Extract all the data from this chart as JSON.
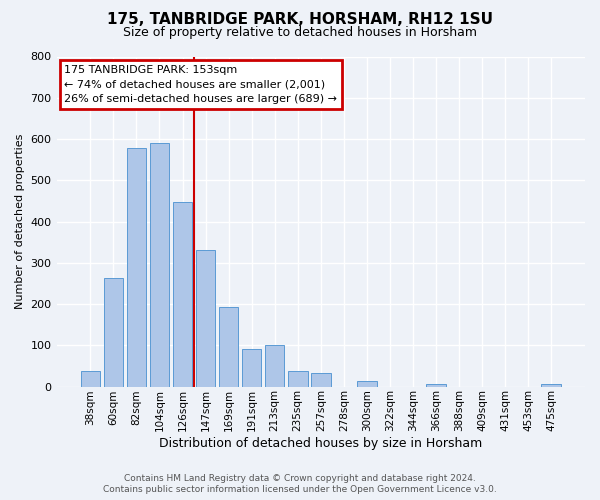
{
  "title": "175, TANBRIDGE PARK, HORSHAM, RH12 1SU",
  "subtitle": "Size of property relative to detached houses in Horsham",
  "xlabel": "Distribution of detached houses by size in Horsham",
  "ylabel": "Number of detached properties",
  "bar_labels": [
    "38sqm",
    "60sqm",
    "82sqm",
    "104sqm",
    "126sqm",
    "147sqm",
    "169sqm",
    "191sqm",
    "213sqm",
    "235sqm",
    "257sqm",
    "278sqm",
    "300sqm",
    "322sqm",
    "344sqm",
    "366sqm",
    "388sqm",
    "409sqm",
    "431sqm",
    "453sqm",
    "475sqm"
  ],
  "bar_values": [
    38,
    262,
    577,
    591,
    447,
    330,
    193,
    90,
    100,
    38,
    32,
    0,
    14,
    0,
    0,
    6,
    0,
    0,
    0,
    0,
    6
  ],
  "bar_color": "#aec6e8",
  "bar_edge_color": "#5b9bd5",
  "vline_color": "#cc0000",
  "vline_pos": 4.5,
  "ylim": [
    0,
    800
  ],
  "yticks": [
    0,
    100,
    200,
    300,
    400,
    500,
    600,
    700,
    800
  ],
  "annotation_title": "175 TANBRIDGE PARK: 153sqm",
  "annotation_line1": "← 74% of detached houses are smaller (2,001)",
  "annotation_line2": "26% of semi-detached houses are larger (689) →",
  "annotation_box_color": "#cc0000",
  "footer_line1": "Contains HM Land Registry data © Crown copyright and database right 2024.",
  "footer_line2": "Contains public sector information licensed under the Open Government Licence v3.0.",
  "bg_color": "#eef2f8",
  "grid_color": "#ffffff",
  "title_fontsize": 11,
  "subtitle_fontsize": 9,
  "ylabel_fontsize": 8,
  "xlabel_fontsize": 9,
  "tick_fontsize": 8,
  "xtick_fontsize": 7.5,
  "ann_fontsize": 8,
  "footer_fontsize": 6.5
}
